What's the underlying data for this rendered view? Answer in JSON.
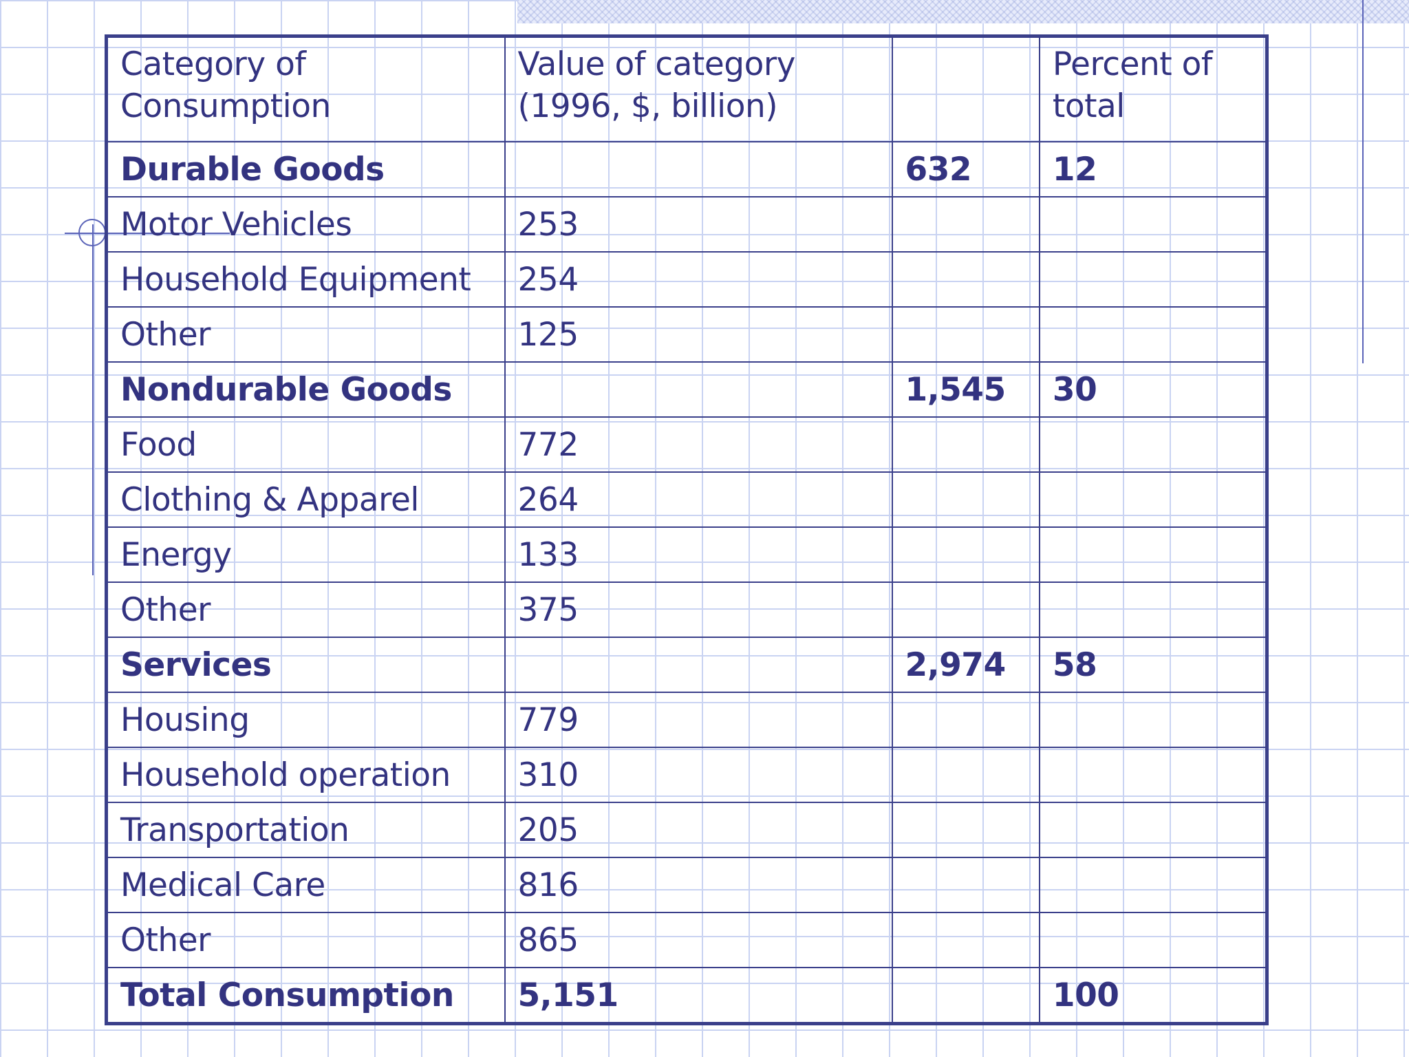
{
  "table": {
    "headers": [
      "Category of Consumption",
      "Value of category (1996, $, billion)",
      "",
      "Percent of total"
    ],
    "rows": [
      {
        "category": "Durable Goods",
        "value": "",
        "subtotal": "632",
        "percent": "12",
        "bold": true
      },
      {
        "category": "Motor Vehicles",
        "value": "253",
        "subtotal": "",
        "percent": "",
        "bold": false
      },
      {
        "category": "Household Equipment",
        "value": "254",
        "subtotal": "",
        "percent": "",
        "bold": false
      },
      {
        "category": "Other",
        "value": "125",
        "subtotal": "",
        "percent": "",
        "bold": false
      },
      {
        "category": "Nondurable Goods",
        "value": "",
        "subtotal": "1,545",
        "percent": "30",
        "bold": true
      },
      {
        "category": "Food",
        "value": "772",
        "subtotal": "",
        "percent": "",
        "bold": false
      },
      {
        "category": "Clothing & Apparel",
        "value": "264",
        "subtotal": "",
        "percent": "",
        "bold": false
      },
      {
        "category": "Energy",
        "value": "133",
        "subtotal": "",
        "percent": "",
        "bold": false
      },
      {
        "category": "Other",
        "value": "375",
        "subtotal": "",
        "percent": "",
        "bold": false
      },
      {
        "category": "Services",
        "value": "",
        "subtotal": "2,974",
        "percent": "58",
        "bold": true
      },
      {
        "category": "Housing",
        "value": "779",
        "subtotal": "",
        "percent": "",
        "bold": false
      },
      {
        "category": "Household operation",
        "value": "310",
        "subtotal": "",
        "percent": "",
        "bold": false
      },
      {
        "category": "Transportation",
        "value": "205",
        "subtotal": "",
        "percent": "",
        "bold": false
      },
      {
        "category": "Medical Care",
        "value": "816",
        "subtotal": "",
        "percent": "",
        "bold": false
      },
      {
        "category": "Other",
        "value": "865",
        "subtotal": "",
        "percent": "",
        "bold": false
      },
      {
        "category": "Total Consumption",
        "value": "5,151",
        "subtotal": "",
        "percent": "100",
        "bold": true
      }
    ]
  },
  "colors": {
    "text": "#333380",
    "border": "#3a3f8a",
    "grid": "#c9d3f2"
  }
}
